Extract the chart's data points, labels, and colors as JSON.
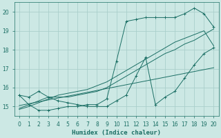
{
  "bg_color": "#cce8e4",
  "grid_color": "#aacfcb",
  "line_color": "#1a6e64",
  "xlabel": "Humidex (Indice chaleur)",
  "xlim": [
    -0.5,
    20.5
  ],
  "ylim": [
    14.5,
    20.5
  ],
  "xticks": [
    0,
    1,
    2,
    3,
    4,
    5,
    6,
    7,
    8,
    9,
    10,
    11,
    12,
    13,
    14,
    15,
    16,
    17,
    18,
    19,
    20
  ],
  "yticks": [
    15,
    16,
    17,
    18,
    19,
    20
  ],
  "s1_x": [
    0,
    1,
    2,
    3,
    4,
    5,
    6,
    7,
    8,
    9,
    10,
    11,
    12,
    13,
    14,
    15,
    16,
    17,
    18,
    19,
    20
  ],
  "s1_y": [
    15.6,
    15.1,
    14.8,
    14.8,
    14.9,
    15.0,
    15.0,
    15.1,
    15.1,
    15.4,
    17.4,
    19.5,
    19.6,
    19.7,
    19.7,
    19.7,
    19.7,
    19.9,
    20.2,
    19.9,
    19.2
  ],
  "s2_x": [
    0,
    1,
    2,
    3,
    4,
    5,
    6,
    7,
    8,
    9,
    10,
    11,
    12,
    13,
    14,
    15,
    16,
    17,
    18,
    19,
    20
  ],
  "s2_y": [
    15.05,
    15.15,
    15.25,
    15.35,
    15.45,
    15.55,
    15.65,
    15.75,
    15.85,
    15.95,
    16.05,
    16.15,
    16.25,
    16.35,
    16.45,
    16.55,
    16.65,
    16.75,
    16.85,
    16.95,
    17.05
  ],
  "s3_x": [
    0,
    1,
    2,
    3,
    4,
    5,
    6,
    7,
    8,
    9,
    10,
    11,
    12,
    13,
    14,
    15,
    16,
    17,
    18,
    19,
    20
  ],
  "s3_y": [
    14.9,
    15.1,
    15.3,
    15.5,
    15.5,
    15.5,
    15.6,
    15.7,
    15.8,
    16.0,
    16.3,
    16.6,
    16.9,
    17.2,
    17.5,
    17.8,
    18.0,
    18.3,
    18.5,
    18.8,
    19.1
  ],
  "s4_x": [
    0,
    1,
    2,
    3,
    4,
    5,
    6,
    7,
    8,
    9,
    10,
    11,
    12,
    13,
    14,
    15,
    16,
    17,
    18,
    19,
    20
  ],
  "s4_y": [
    14.85,
    15.0,
    15.2,
    15.4,
    15.6,
    15.7,
    15.8,
    15.9,
    16.1,
    16.3,
    16.6,
    16.9,
    17.2,
    17.5,
    17.8,
    18.1,
    18.4,
    18.6,
    18.8,
    19.0,
    18.2
  ],
  "s5_x": [
    0,
    1,
    2,
    3,
    4,
    5,
    6,
    7,
    8,
    9,
    10,
    11,
    12,
    13,
    14,
    15,
    16,
    17,
    18,
    19,
    20
  ],
  "s5_y": [
    15.6,
    15.5,
    15.8,
    15.5,
    15.3,
    15.2,
    15.1,
    15.0,
    15.0,
    15.0,
    15.3,
    15.6,
    16.6,
    17.6,
    15.1,
    15.5,
    15.8,
    16.5,
    17.2,
    17.8,
    18.1
  ]
}
